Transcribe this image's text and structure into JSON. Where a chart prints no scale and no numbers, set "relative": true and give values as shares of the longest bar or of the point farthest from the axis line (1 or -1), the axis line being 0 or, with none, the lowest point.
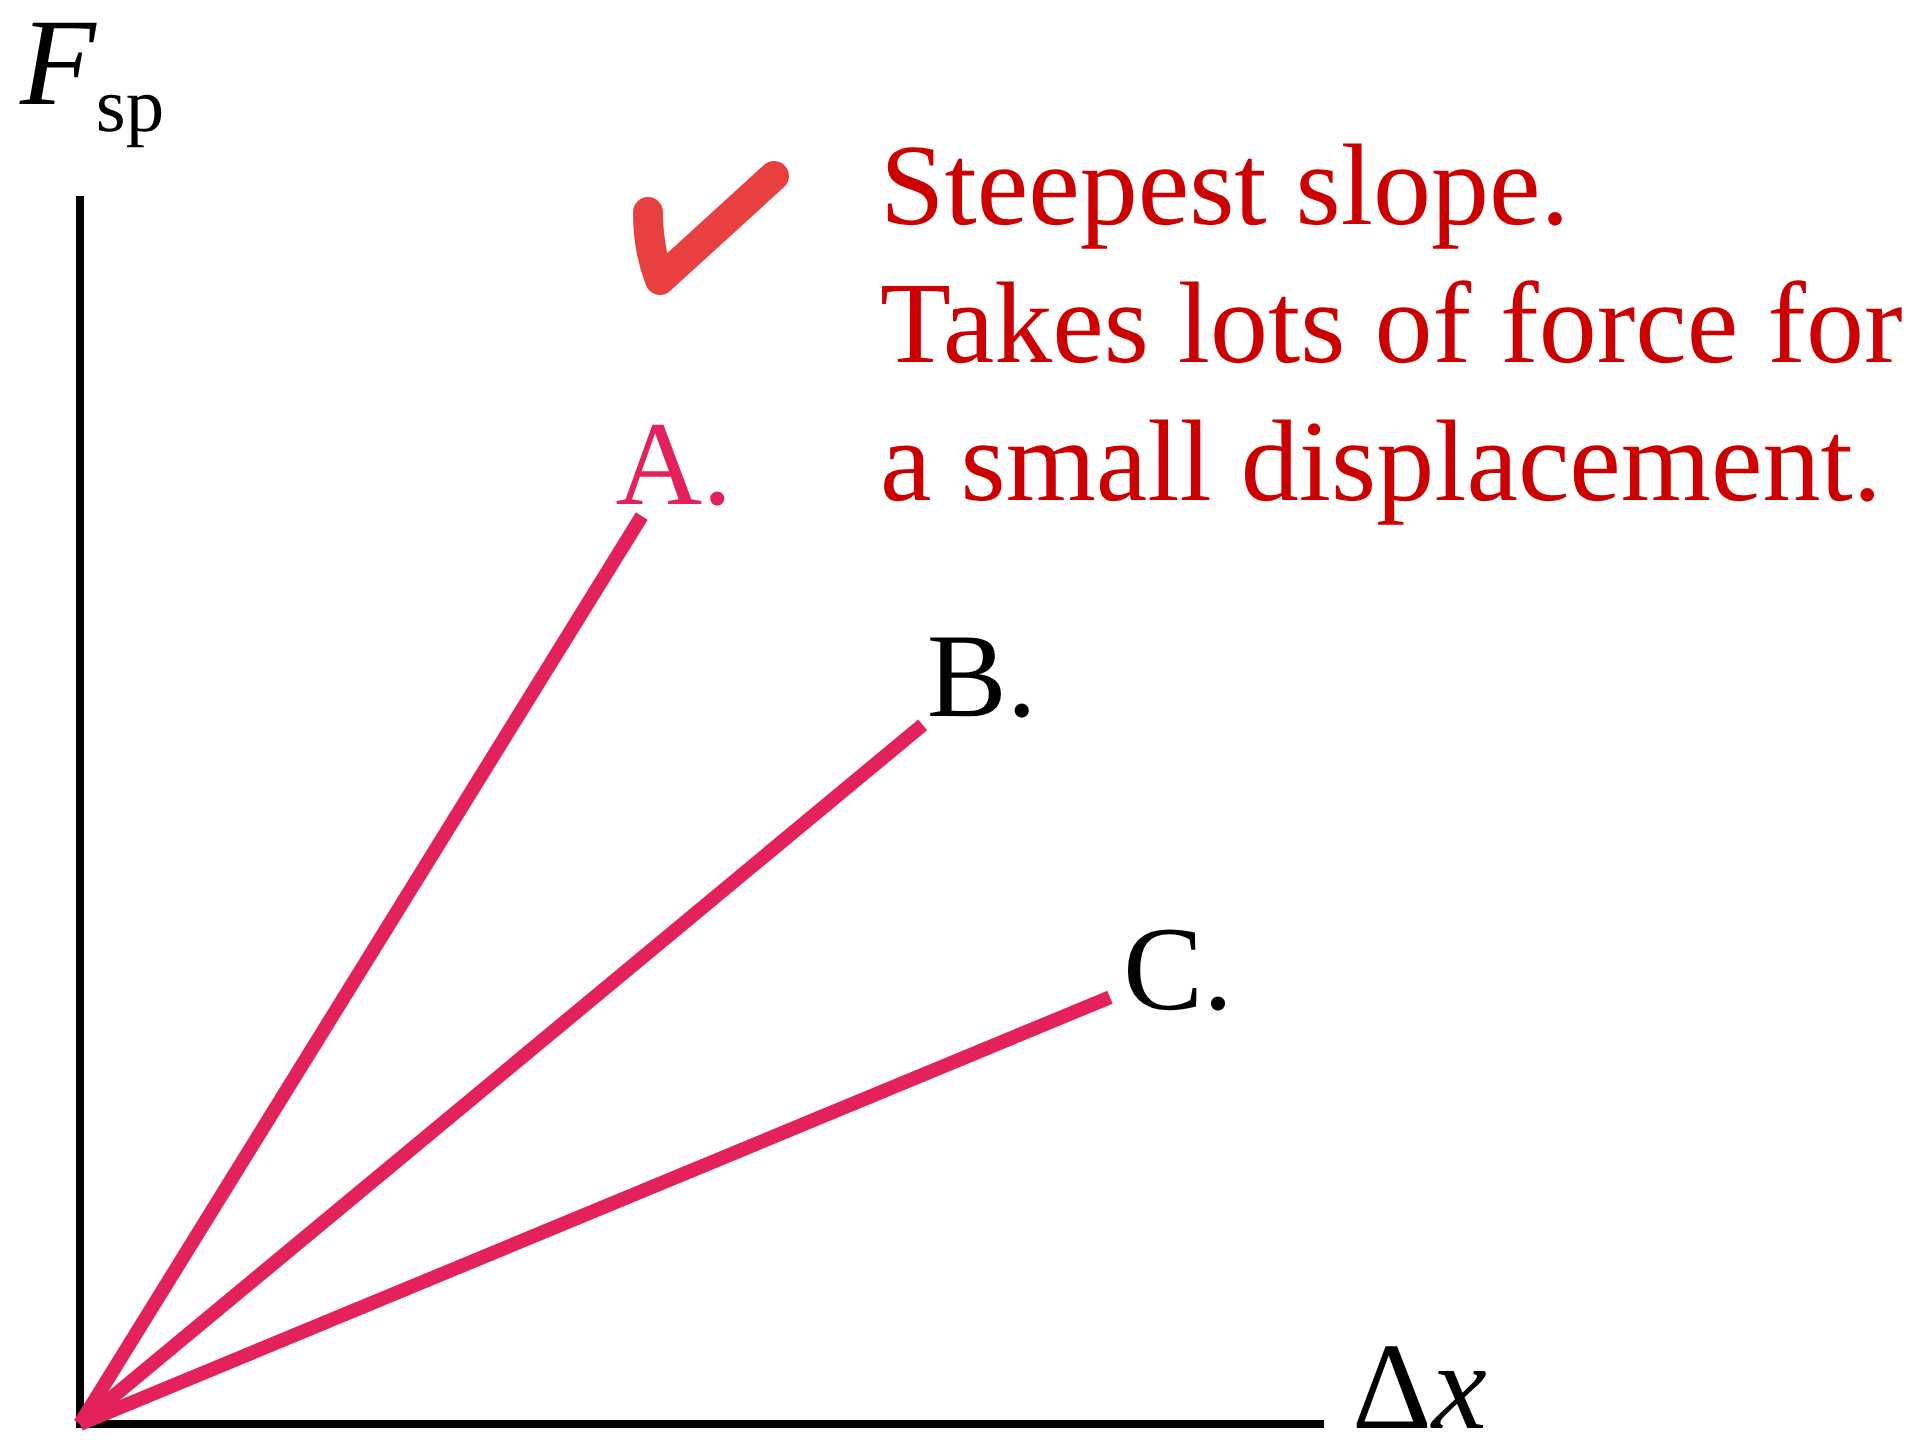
{
  "chart_data": {
    "type": "line",
    "relative": true,
    "xlabel": "Δx",
    "ylabel": "F$_{sp}$",
    "categories": [
      null,
      null,
      null,
      null,
      null,
      null,
      null,
      null,
      null,
      null,
      null,
      null
    ],
    "series": [
      {
        "name": "A.",
        "color": "#e3225c",
        "values": [
          0,
          null,
          null,
          null,
          null,
          null,
          1,
          null,
          null,
          null,
          null,
          null
        ]
      },
      {
        "name": "B.",
        "color": "#e3225c",
        "values": [
          0,
          null,
          null,
          null,
          null,
          null,
          null,
          null,
          null,
          0.77,
          null,
          null
        ]
      },
      {
        "name": "C.",
        "color": "#e3225c",
        "values": [
          0,
          null,
          null,
          null,
          null,
          null,
          null,
          null,
          null,
          null,
          null,
          0.47
        ]
      }
    ],
    "annotations": [
      "Steepest slope.\nTakes lots of force for\na small displacement."
    ]
  }
}
